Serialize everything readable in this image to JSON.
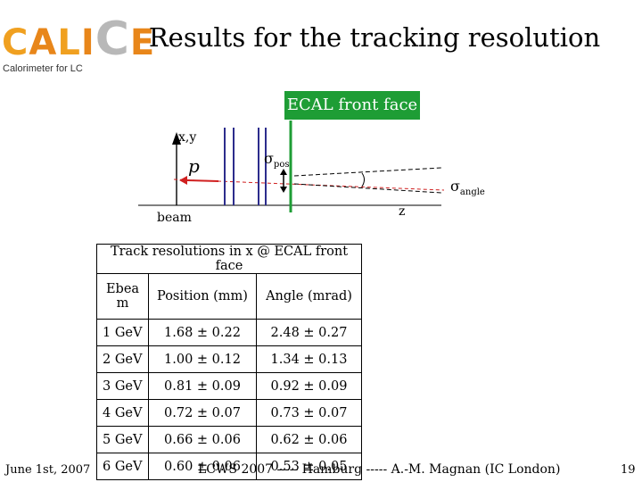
{
  "logo": {
    "letters": [
      {
        "ch": "C",
        "color": "#f0a020"
      },
      {
        "ch": "A",
        "color": "#e8861a"
      },
      {
        "ch": "L",
        "color": "#f0a020"
      },
      {
        "ch": "I",
        "color": "#e8861a"
      },
      {
        "ch": "C",
        "color": "#b8b8b8"
      },
      {
        "ch": "E",
        "color": "#e8861a"
      }
    ],
    "subtitle": "Calorimeter for LC"
  },
  "title": "Results for the tracking resolution",
  "diagram": {
    "ecal_label": "ECAL front face",
    "xy": "x,y",
    "p": "p",
    "sigma_pos": "σ",
    "sigma_pos_sub": "pos",
    "sigma_angle": "σ",
    "sigma_angle_sub": "angle",
    "z": "z",
    "beam": "beam",
    "colors": {
      "layers": "#2c2c8c",
      "ecal": "#1e9d35",
      "beam": "#d02020",
      "axis": "#000000"
    }
  },
  "table": {
    "caption": "Track resolutions in x @ ECAL front face",
    "headers": [
      "Ebeam",
      "Position (mm)",
      "Angle (mrad)"
    ],
    "header_lines": [
      "Ebea",
      "m"
    ],
    "rows": [
      [
        "1 GeV",
        "1.68 ± 0.22",
        "2.48 ± 0.27"
      ],
      [
        "2 GeV",
        "1.00 ± 0.12",
        "1.34 ± 0.13"
      ],
      [
        "3 GeV",
        "0.81 ± 0.09",
        "0.92 ± 0.09"
      ],
      [
        "4 GeV",
        "0.72 ± 0.07",
        "0.73 ± 0.07"
      ],
      [
        "5 GeV",
        "0.66 ± 0.06",
        "0.62 ± 0.06"
      ],
      [
        "6 GeV",
        "0.60 ± 0.06",
        "0.53 ± 0.05"
      ]
    ]
  },
  "footer": {
    "date": "June 1st, 2007",
    "center": "LCWS 2007 ----- Hamburg ----- A.-M. Magnan (IC London)",
    "page": "19"
  }
}
